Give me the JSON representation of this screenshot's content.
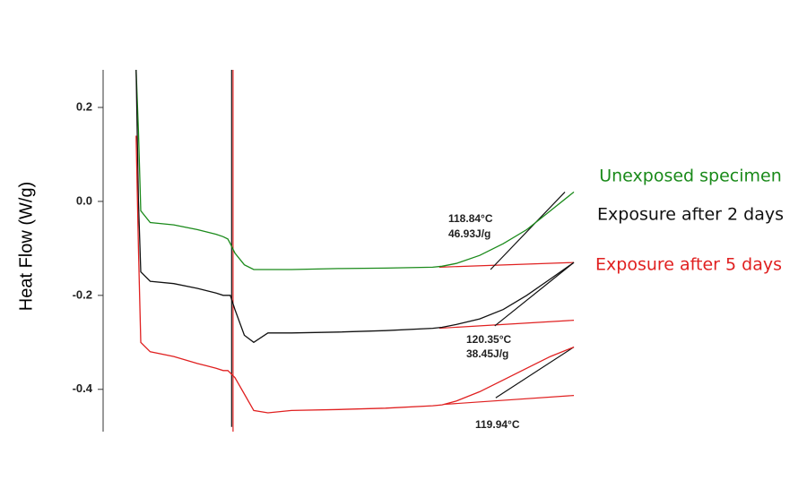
{
  "chart_data": {
    "type": "line",
    "y_label": "Heat Flow (W/g)",
    "ylim": [
      -0.49,
      0.28
    ],
    "yticks": [
      0.2,
      {
        "value": 0,
        "label": "0.0"
      },
      -0.2,
      -0.4
    ],
    "xlim": [
      0,
      100
    ],
    "x": [
      7,
      7.5,
      8,
      10,
      15,
      20,
      22,
      24,
      25.5,
      26.5,
      27,
      28,
      30,
      32,
      35,
      40,
      50,
      60,
      70,
      72,
      75,
      80,
      85,
      90,
      95,
      100
    ],
    "series": [
      {
        "name": "Unexposed specimen",
        "color": "#1a8a1a",
        "values": [
          0.28,
          0.15,
          -0.02,
          -0.045,
          -0.05,
          -0.06,
          -0.065,
          -0.07,
          -0.075,
          -0.08,
          -0.09,
          -0.11,
          -0.135,
          -0.145,
          -0.145,
          -0.145,
          -0.143,
          -0.142,
          -0.14,
          -0.138,
          -0.132,
          -0.115,
          -0.09,
          -0.06,
          -0.02,
          0.02
        ]
      },
      {
        "name": "Exposure after 2 days",
        "color": "#111111",
        "values": [
          0.28,
          0.0,
          -0.15,
          -0.17,
          -0.175,
          -0.185,
          -0.19,
          -0.195,
          -0.2,
          -0.2,
          -0.2,
          -0.23,
          -0.285,
          -0.3,
          -0.28,
          -0.28,
          -0.278,
          -0.275,
          -0.27,
          -0.268,
          -0.262,
          -0.25,
          -0.23,
          -0.2,
          -0.165,
          -0.13
        ]
      },
      {
        "name": "Exposure after 5 days",
        "color": "#e02020",
        "values": [
          0.14,
          -0.1,
          -0.3,
          -0.32,
          -0.33,
          -0.345,
          -0.35,
          -0.355,
          -0.36,
          -0.36,
          -0.365,
          -0.375,
          -0.41,
          -0.445,
          -0.45,
          -0.445,
          -0.443,
          -0.44,
          -0.435,
          -0.433,
          -0.425,
          -0.405,
          -0.38,
          -0.355,
          -0.33,
          -0.31
        ]
      }
    ],
    "reference_lines": [
      {
        "color": "#e02020",
        "x": [
          71.4,
          100
        ],
        "y": [
          -0.14,
          -0.13
        ]
      },
      {
        "color": "#e02020",
        "x": [
          71.4,
          100
        ],
        "y": [
          -0.27,
          -0.253
        ]
      },
      {
        "color": "#e02020",
        "x": [
          72.4,
          100
        ],
        "y": [
          -0.432,
          -0.413
        ]
      },
      {
        "color": "#111111",
        "x": [
          82.3,
          98.1
        ],
        "y": [
          -0.145,
          0.02
        ]
      },
      {
        "color": "#111111",
        "x": [
          83.2,
          100
        ],
        "y": [
          -0.265,
          -0.13
        ]
      },
      {
        "color": "#111111",
        "x": [
          83.4,
          100
        ],
        "y": [
          -0.418,
          -0.31
        ]
      },
      {
        "color": "#e02020",
        "x": [
          27.6,
          27.6
        ],
        "y": [
          0.28,
          -0.49
        ]
      },
      {
        "color": "#111111",
        "x": [
          27.3,
          27.3
        ],
        "y": [
          0.28,
          -0.48
        ]
      }
    ],
    "annotations": [
      {
        "text": "118.84°C"
      },
      {
        "text": "46.93J/g"
      },
      {
        "text": "120.35°C"
      },
      {
        "text": "38.45J/g"
      },
      {
        "text": "119.94°C"
      }
    ]
  }
}
